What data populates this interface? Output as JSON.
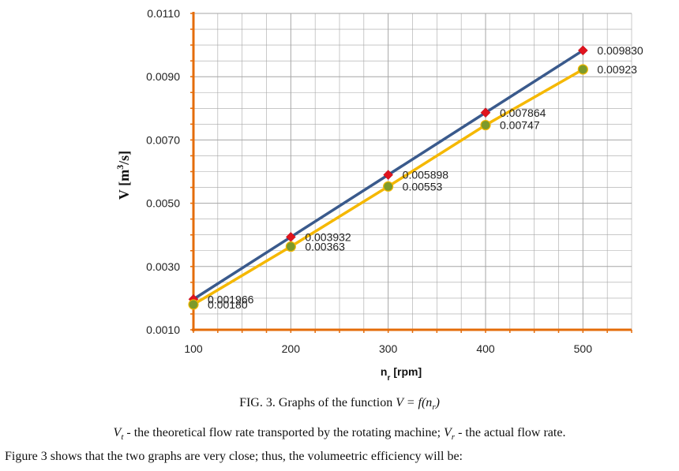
{
  "chart_data": {
    "type": "line",
    "xlabel": "n",
    "xlabel_sub": "r",
    "xlabel_unit": "[rpm]",
    "ylabel": "V [m",
    "ylabel_sup": "3",
    "ylabel_unit": "/s]",
    "x": [
      100,
      200,
      300,
      400,
      500
    ],
    "xlim": [
      100,
      550
    ],
    "ylim": [
      0.001,
      0.011
    ],
    "x_ticks": [
      "100",
      "200",
      "300",
      "400",
      "500"
    ],
    "y_ticks": [
      "0.0110",
      "0.0090",
      "0.0070",
      "0.0050",
      "0.0030",
      "0.0010"
    ],
    "y_tick_values": [
      0.011,
      0.009,
      0.007,
      0.005,
      0.003,
      0.001
    ],
    "grid": true,
    "series": [
      {
        "values": [
          0.001966,
          0.003932,
          0.005898,
          0.007864,
          0.00983
        ],
        "labels": [
          "0.001966",
          "0.003932",
          "0.005898",
          "0.007864",
          "0.009830"
        ],
        "line_color": "#3a5a8c",
        "marker": "diamond",
        "marker_color": "#e0141e"
      },
      {
        "values": [
          0.0018,
          0.00363,
          0.00553,
          0.00747,
          0.00923
        ],
        "labels": [
          "0.00180",
          "0.00363",
          "0.00553",
          "0.00747",
          "0.00923"
        ],
        "line_color": "#f5b800",
        "marker": "circle",
        "marker_color": "#7d9a2a"
      }
    ],
    "axis_color": "#e46c0a",
    "grid_color": "#a6a6a6"
  },
  "caption": {
    "prefix": "FIG. 3. Graphs of the function ",
    "func_v": "V",
    "func_eq": " = f(n",
    "func_sub": "r",
    "func_close": ")"
  },
  "legend_text": {
    "vt_symbol": "V",
    "vt_sub": "t",
    "vt_text": " - the theoretical flow rate transported by the rotating machine; ",
    "vr_symbol": "V",
    "vr_sub": "r",
    "vr_text": " - the actual flow rate."
  },
  "body_text": "Figure 3 shows that the two graphs are very close; thus, the volumeetric efficiency will be:"
}
